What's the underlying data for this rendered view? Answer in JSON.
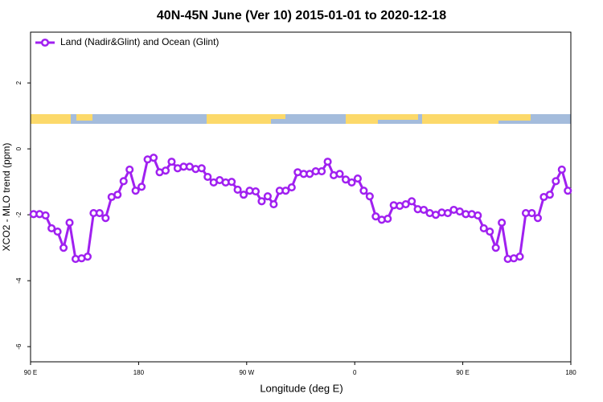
{
  "chart_data": {
    "type": "line",
    "title": "40N-45N June (Ver 10)   2015-01-01 to 2020-12-18",
    "x_label": "Longitude (deg E)",
    "y_label": "XCO2 - MLO trend (ppm)",
    "legend_position": "top-left",
    "x": [
      92.5,
      97.5,
      102.5,
      107.5,
      112.5,
      117.5,
      122.5,
      127.5,
      132.5,
      137.5,
      142.5,
      147.5,
      152.5,
      157.5,
      162.5,
      167.5,
      172.5,
      177.5,
      182.5,
      187.5,
      192.5,
      197.5,
      202.5,
      207.5,
      212.5,
      217.5,
      222.5,
      227.5,
      232.5,
      237.5,
      242.5,
      247.5,
      252.5,
      257.5,
      262.5,
      267.5,
      272.5,
      277.5,
      282.5,
      287.5,
      292.5,
      297.5,
      302.5,
      307.5,
      312.5,
      317.5,
      322.5,
      327.5,
      332.5,
      337.5,
      342.5,
      347.5,
      352.5,
      357.5,
      362.5,
      367.5,
      372.5,
      377.5,
      382.5,
      387.5,
      392.5,
      397.5,
      402.5,
      407.5,
      412.5,
      417.5,
      422.5,
      427.5,
      432.5,
      437.5,
      442.5,
      447.5,
      452.5,
      457.5,
      462.5,
      467.5,
      472.5,
      477.5,
      482.5,
      487.5,
      492.5,
      497.5,
      502.5,
      507.5,
      512.5,
      517.5,
      522.5,
      527.5,
      532.5,
      537.5
    ],
    "series": [
      {
        "name": "Land (Nadir&Glint) and Ocean (Glint)",
        "color": "#a020f0",
        "values": [
          -1.98,
          -1.98,
          -2.02,
          -2.41,
          -2.51,
          -3.0,
          -2.24,
          -3.34,
          -3.32,
          -3.27,
          -1.95,
          -1.95,
          -2.1,
          -1.46,
          -1.39,
          -0.98,
          -0.63,
          -1.27,
          -1.15,
          -0.32,
          -0.27,
          -0.71,
          -0.66,
          -0.39,
          -0.59,
          -0.54,
          -0.54,
          -0.61,
          -0.59,
          -0.85,
          -1.02,
          -0.95,
          -1.02,
          -1.0,
          -1.24,
          -1.39,
          -1.27,
          -1.29,
          -1.59,
          -1.44,
          -1.68,
          -1.27,
          -1.27,
          -1.17,
          -0.71,
          -0.76,
          -0.76,
          -0.68,
          -0.68,
          -0.39,
          -0.8,
          -0.76,
          -0.93,
          -1.02,
          -0.9,
          -1.27,
          -1.44,
          -2.05,
          -2.15,
          -2.12,
          -1.71,
          -1.73,
          -1.68,
          -1.59,
          -1.83,
          -1.85,
          -1.95,
          -2.0,
          -1.93,
          -1.95,
          -1.85,
          -1.9,
          -1.98,
          -1.98,
          -2.02,
          -2.41,
          -2.51,
          -3.0,
          -2.24,
          -3.34,
          -3.32,
          -3.27,
          -1.95,
          -1.95,
          -2.1,
          -1.46,
          -1.39,
          -0.98,
          -0.63,
          -1.27
        ]
      }
    ],
    "xlim": [
      90,
      540
    ],
    "xticks": [
      {
        "value": 90,
        "label": "90 E"
      },
      {
        "value": 180,
        "label": "180"
      },
      {
        "value": 270,
        "label": "90 W"
      },
      {
        "value": 360,
        "label": "0"
      },
      {
        "value": 450,
        "label": "90 E"
      },
      {
        "value": 540,
        "label": "180"
      }
    ],
    "ylim": [
      -6.46,
      3.54
    ],
    "yticks": [
      -6,
      -4,
      -2,
      0,
      2
    ]
  }
}
